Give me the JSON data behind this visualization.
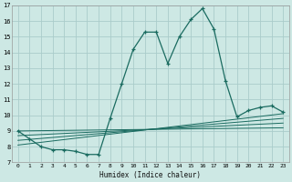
{
  "xlabel": "Humidex (Indice chaleur)",
  "bg_color": "#cde8e4",
  "grid_color": "#aaccca",
  "line_color": "#1a6b60",
  "xlim": [
    -0.5,
    23.5
  ],
  "ylim": [
    7,
    17
  ],
  "yticks": [
    7,
    8,
    9,
    10,
    11,
    12,
    13,
    14,
    15,
    16,
    17
  ],
  "xticks": [
    0,
    1,
    2,
    3,
    4,
    5,
    6,
    7,
    8,
    9,
    10,
    11,
    12,
    13,
    14,
    15,
    16,
    17,
    18,
    19,
    20,
    21,
    22,
    23
  ],
  "main_line": {
    "x": [
      0,
      1,
      2,
      3,
      4,
      5,
      6,
      7,
      8,
      9,
      10,
      11,
      12,
      13,
      14,
      15,
      16,
      17,
      18,
      19,
      20,
      21,
      22,
      23
    ],
    "y": [
      9.0,
      8.5,
      8.0,
      7.8,
      7.8,
      7.7,
      7.5,
      7.5,
      9.8,
      12.0,
      14.2,
      15.3,
      15.3,
      13.3,
      15.0,
      16.1,
      16.8,
      15.5,
      12.2,
      9.9,
      10.3,
      10.5,
      10.6,
      10.2
    ]
  },
  "flat_lines": [
    {
      "x": [
        0,
        23
      ],
      "y": [
        9.0,
        9.2
      ]
    },
    {
      "x": [
        0,
        23
      ],
      "y": [
        8.7,
        9.5
      ]
    },
    {
      "x": [
        0,
        23
      ],
      "y": [
        8.4,
        9.8
      ]
    },
    {
      "x": [
        0,
        23
      ],
      "y": [
        8.1,
        10.1
      ]
    }
  ]
}
